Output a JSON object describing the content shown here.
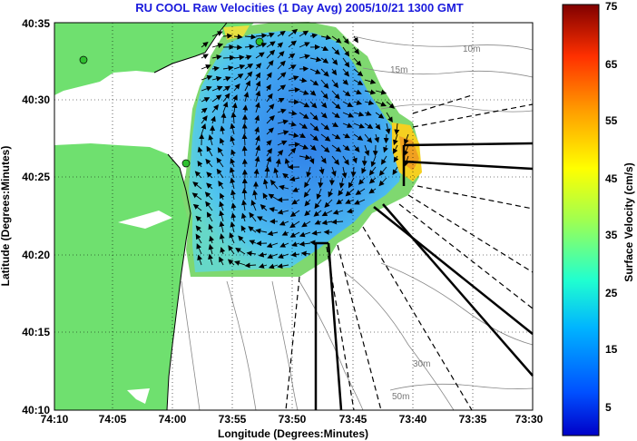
{
  "title": "RU COOL Raw Velocities (1 Day Avg) 2005/10/21 1300 GMT",
  "axes": {
    "xlabel": "Longitude (Degrees:Minutes)",
    "ylabel": "Latitude (Degrees:Minutes)",
    "xticks": [
      "74:10",
      "74:05",
      "74:00",
      "73:55",
      "73:50",
      "73:45",
      "73:40",
      "73:35",
      "73:30"
    ],
    "yticks": [
      "40:35",
      "40:30",
      "40:25",
      "40:20",
      "40:15",
      "40:10"
    ]
  },
  "contours": [
    "10m",
    "15m",
    "30m",
    "50m"
  ],
  "colorbar": {
    "label": "Surface Velocity (cm/s)",
    "ticks": [
      "75",
      "65",
      "55",
      "45",
      "35",
      "25",
      "15",
      "5"
    ],
    "range": [
      0,
      75
    ],
    "colormap": "jet"
  },
  "colors": {
    "land": "#6fe06f",
    "title": "#1a1adc",
    "current_field_core": "#2d7fe6",
    "current_field_edge": "#9adf50"
  }
}
